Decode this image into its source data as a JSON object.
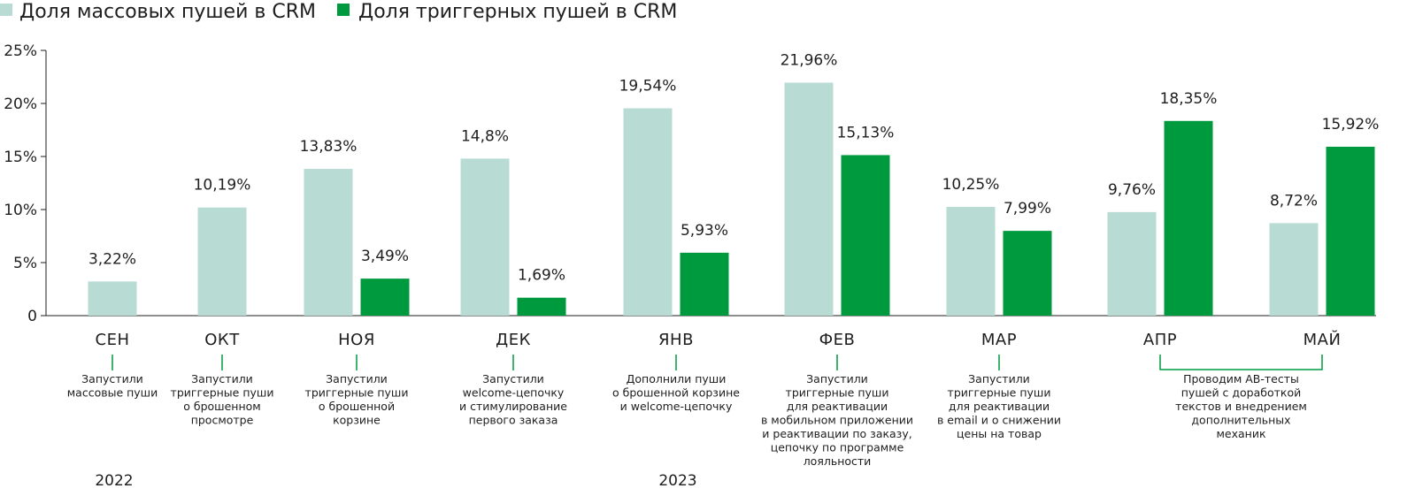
{
  "chart_data": {
    "type": "bar",
    "categories": [
      "СЕН",
      "ОКТ",
      "НОЯ",
      "ДЕК",
      "ЯНВ",
      "ФЕВ",
      "МАР",
      "АПР",
      "МАЙ"
    ],
    "series": [
      {
        "name": "Доля массовых пушей в CRM",
        "color": "#b8dbd4",
        "values": [
          3.22,
          10.19,
          13.83,
          14.8,
          19.54,
          21.96,
          10.25,
          9.76,
          8.72
        ],
        "labels": [
          "3,22%",
          "10,19%",
          "13,83%",
          "14,8%",
          "19,54%",
          "21,96%",
          "10,25%",
          "9,76%",
          "8,72%"
        ]
      },
      {
        "name": "Доля триггерных пушей в CRM",
        "color": "#009a3e",
        "values": [
          null,
          null,
          3.49,
          1.69,
          5.93,
          15.13,
          7.99,
          18.35,
          15.92
        ],
        "labels": [
          "",
          "",
          "3,49%",
          "1,69%",
          "5,93%",
          "15,13%",
          "7,99%",
          "18,35%",
          "15,92%"
        ]
      }
    ],
    "ylim": [
      0,
      25
    ],
    "yticks": [
      0,
      5,
      10,
      15,
      20,
      25
    ],
    "ytick_labels": [
      "0",
      "5%",
      "10%",
      "15%",
      "20%",
      "25%"
    ],
    "legend_position": "top-left",
    "grid": false,
    "years": [
      {
        "label": "2022",
        "category_index": 0
      },
      {
        "label": "2023",
        "category_index": 4
      }
    ],
    "annotations": [
      {
        "category_index": 0,
        "lines": [
          "Запустили",
          "массовые пуши"
        ]
      },
      {
        "category_index": 1,
        "lines": [
          "Запустили",
          "триггерные пуши",
          "о брошенном",
          "просмотре"
        ]
      },
      {
        "category_index": 2,
        "lines": [
          "Запустили",
          "триггерные пуши",
          "о брошенной",
          "корзине"
        ]
      },
      {
        "category_index": 3,
        "lines": [
          "Запустили",
          "welcome-цепочку",
          "и стимулирование",
          "первого заказа"
        ]
      },
      {
        "category_index": 4,
        "lines": [
          "Дополнили пуши",
          "о брошенной корзине",
          "и welcome-цепочку"
        ]
      },
      {
        "category_index": 5,
        "lines": [
          "Запустили",
          "триггерные пуши",
          "для реактивации",
          "в мобильном приложении",
          "и реактивации по заказу,",
          "цепочку по программе",
          "лояльности"
        ]
      },
      {
        "category_index": 6,
        "lines": [
          "Запустили",
          "триггерные пуши",
          "для реактивации",
          "в email и о снижении",
          "цены на товар"
        ]
      },
      {
        "category_index_range": [
          7,
          8
        ],
        "lines": [
          "Проводим АВ-тесты",
          "пушей с доработкой",
          "текстов и внедрением",
          "дополнительных",
          "механик"
        ]
      }
    ]
  }
}
